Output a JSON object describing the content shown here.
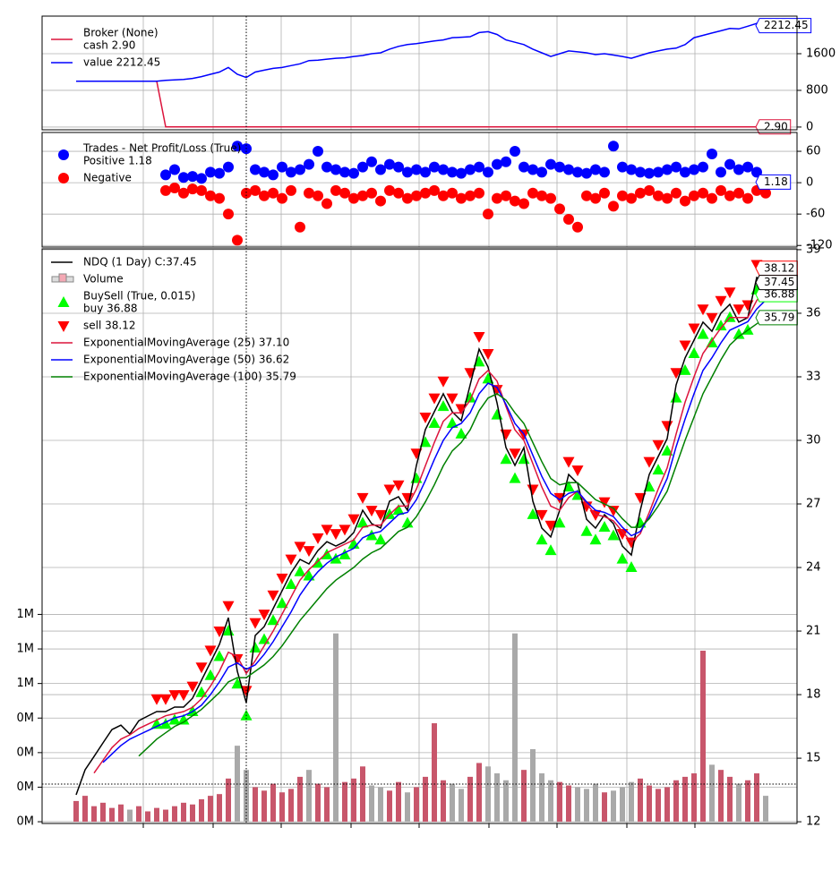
{
  "chart_data": [
    {
      "type": "line",
      "legend_title": "Broker (None)",
      "xlim": [
        -3.8,
        80.5
      ],
      "xticks": [
        7.5,
        15.3,
        22.9,
        30.7,
        38.3,
        46.1,
        53.7,
        61.5,
        69.1
      ],
      "ylim": [
        -60,
        2420
      ],
      "yticks": [
        0,
        800,
        1600
      ],
      "grid": true,
      "series": [
        {
          "name": "cash 2.90",
          "color": "#dc143c",
          "end_label": "2.90",
          "values": [
            1000,
            1000,
            1000,
            1000,
            1000,
            1000,
            1000,
            1000,
            1000,
            1000,
            2.9,
            2.9,
            2.9,
            2.9,
            2.9,
            2.9,
            2.9,
            2.9,
            2.9,
            2.9,
            2.9,
            2.9,
            2.9,
            2.9,
            2.9,
            2.9,
            2.9,
            2.9,
            2.9,
            2.9,
            2.9,
            2.9,
            2.9,
            2.9,
            2.9,
            2.9,
            2.9,
            2.9,
            2.9,
            2.9,
            2.9,
            2.9,
            2.9,
            2.9,
            2.9,
            2.9,
            2.9,
            2.9,
            2.9,
            2.9,
            2.9,
            2.9,
            2.9,
            2.9,
            2.9,
            2.9,
            2.9,
            2.9,
            2.9,
            2.9,
            2.9,
            2.9,
            2.9,
            2.9,
            2.9,
            2.9,
            2.9,
            2.9,
            2.9,
            2.9,
            2.9,
            2.9,
            2.9,
            2.9,
            2.9,
            2.9,
            2.9,
            2.9
          ]
        },
        {
          "name": "value 2212.45",
          "color": "#0000ff",
          "end_label": "2212.45",
          "values": [
            1000,
            1000,
            1000,
            1000,
            1000,
            1000,
            1000,
            1000,
            1000,
            1000,
            1020,
            1030,
            1040,
            1060,
            1100,
            1150,
            1200,
            1300,
            1150,
            1080,
            1200,
            1240,
            1280,
            1300,
            1340,
            1380,
            1450,
            1460,
            1480,
            1500,
            1510,
            1540,
            1560,
            1600,
            1620,
            1700,
            1760,
            1800,
            1820,
            1850,
            1880,
            1900,
            1950,
            1960,
            1970,
            2060,
            2080,
            2020,
            1900,
            1850,
            1800,
            1700,
            1620,
            1540,
            1600,
            1660,
            1640,
            1620,
            1580,
            1600,
            1570,
            1540,
            1500,
            1560,
            1620,
            1660,
            1700,
            1720,
            1800,
            1950,
            2000,
            2050,
            2100,
            2150,
            2140,
            2200,
            2260,
            2212.45
          ]
        }
      ]
    },
    {
      "type": "scatter",
      "legend_title": "Trades - Net Profit/Loss (True)",
      "xlim": [
        -3.8,
        80.5
      ],
      "xticks": [
        7.5,
        15.3,
        22.9,
        30.7,
        38.3,
        46.1,
        53.7,
        61.5,
        69.1
      ],
      "ylim": [
        -123,
        96
      ],
      "yticks": [
        -120,
        -60,
        0,
        60
      ],
      "grid": true,
      "series": [
        {
          "name": "Positive 1.18",
          "color": "#0000ff",
          "end_label": "1.18",
          "values": [
            null,
            null,
            null,
            null,
            null,
            null,
            null,
            null,
            null,
            null,
            15,
            25,
            10,
            12,
            8,
            20,
            18,
            30,
            70,
            65,
            25,
            20,
            15,
            30,
            20,
            25,
            35,
            60,
            30,
            25,
            20,
            18,
            30,
            40,
            25,
            35,
            30,
            20,
            25,
            20,
            30,
            25,
            20,
            18,
            25,
            30,
            20,
            35,
            40,
            60,
            30,
            25,
            20,
            35,
            30,
            25,
            20,
            18,
            25,
            20,
            70,
            30,
            25,
            20,
            18,
            20,
            25,
            30,
            20,
            25,
            30,
            55,
            20,
            35,
            25,
            30,
            20,
            1.18
          ]
        },
        {
          "name": "Negative",
          "color": "#ff0000",
          "values": [
            null,
            null,
            null,
            null,
            null,
            null,
            null,
            null,
            null,
            null,
            -15,
            -10,
            -20,
            -12,
            -15,
            -25,
            -30,
            -60,
            -110,
            -20,
            -15,
            -25,
            -20,
            -30,
            -15,
            -85,
            -20,
            -25,
            -40,
            -15,
            -20,
            -30,
            -25,
            -20,
            -35,
            -15,
            -20,
            -30,
            -25,
            -20,
            -15,
            -25,
            -20,
            -30,
            -25,
            -20,
            -60,
            -30,
            -25,
            -35,
            -40,
            -20,
            -25,
            -30,
            -50,
            -70,
            -85,
            -25,
            -30,
            -20,
            -45,
            -25,
            -30,
            -20,
            -15,
            -25,
            -30,
            -20,
            -35,
            -25,
            -20,
            -30,
            -15,
            -25,
            -20,
            -30,
            -15,
            -20
          ]
        }
      ]
    },
    {
      "type": "line",
      "xlim": [
        -3.8,
        80.5
      ],
      "xticks": [
        7.5,
        15.3,
        22.9,
        30.7,
        38.3,
        46.1,
        53.7,
        61.5,
        69.1
      ],
      "ylim": [
        11.92,
        39.04
      ],
      "yticks": [
        12,
        15,
        18,
        21,
        24,
        27,
        30,
        33,
        36,
        39
      ],
      "grid": true,
      "y2lim": [
        -10000,
        3316000
      ],
      "y2ticks": [
        {
          "value": 0,
          "label": "0M"
        },
        {
          "value": 200000,
          "label": "0M"
        },
        {
          "value": 400000,
          "label": "0M"
        },
        {
          "value": 600000,
          "label": "0M"
        },
        {
          "value": 800000,
          "label": "1M"
        },
        {
          "value": 1000000,
          "label": "1M"
        },
        {
          "value": 1200000,
          "label": "1M"
        }
      ],
      "series": [
        {
          "name": "NDQ (1 Day) C:37.45",
          "color": "#000000",
          "end_label": "37.45",
          "values": [
            13.27,
            14.45,
            15.08,
            15.72,
            16.35,
            16.56,
            16.14,
            16.77,
            16.99,
            17.2,
            17.2,
            17.41,
            17.41,
            17.83,
            18.68,
            19.52,
            20.37,
            21.63,
            19.1,
            17.62,
            20.79,
            21.21,
            22.06,
            22.9,
            23.75,
            24.38,
            24.17,
            24.8,
            25.22,
            25.01,
            25.22,
            25.65,
            26.7,
            26.07,
            25.86,
            27.13,
            27.34,
            26.7,
            28.82,
            30.51,
            31.35,
            32.2,
            31.35,
            30.93,
            32.62,
            34.31,
            33.46,
            31.77,
            29.66,
            28.82,
            29.66,
            27.13,
            25.86,
            25.44,
            26.7,
            28.39,
            27.97,
            26.28,
            25.86,
            26.49,
            26.07,
            25.01,
            24.59,
            26.7,
            28.39,
            29.24,
            30.08,
            32.62,
            33.89,
            34.73,
            35.58,
            35.15,
            36.0,
            36.42,
            35.58,
            35.79,
            37.69,
            37.45
          ]
        },
        {
          "name": "Volume",
          "style": "bar",
          "axis": "y2",
          "color": "#c8566b",
          "down_color": "#a9a9a9",
          "values": [
            120000,
            150000,
            90000,
            110000,
            80000,
            100000,
            70000,
            90000,
            60000,
            80000,
            70000,
            90000,
            110000,
            100000,
            130000,
            150000,
            160000,
            250000,
            440000,
            300000,
            200000,
            180000,
            220000,
            170000,
            190000,
            260000,
            300000,
            220000,
            200000,
            1090000,
            230000,
            250000,
            320000,
            210000,
            200000,
            180000,
            230000,
            170000,
            200000,
            260000,
            570000,
            240000,
            220000,
            190000,
            260000,
            340000,
            320000,
            280000,
            240000,
            1090000,
            300000,
            420000,
            280000,
            240000,
            230000,
            210000,
            200000,
            190000,
            220000,
            170000,
            180000,
            200000,
            230000,
            250000,
            210000,
            190000,
            200000,
            240000,
            260000,
            280000,
            990000,
            330000,
            300000,
            260000,
            220000,
            240000,
            280000,
            150000
          ]
        },
        {
          "name": "buy 36.88",
          "group_title": "BuySell (True, 0.015)",
          "style": "triangle-up",
          "color": "#00ff00",
          "end_label": "36.88",
          "values": [
            null,
            null,
            null,
            null,
            null,
            null,
            null,
            null,
            null,
            16.6,
            16.6,
            16.8,
            16.8,
            17.2,
            18.1,
            18.9,
            19.8,
            21.0,
            18.5,
            17.0,
            20.2,
            20.6,
            21.5,
            22.3,
            23.2,
            23.8,
            23.6,
            24.2,
            24.6,
            24.4,
            24.6,
            25.1,
            26.1,
            25.5,
            25.3,
            26.5,
            26.7,
            26.1,
            28.2,
            29.9,
            30.8,
            31.6,
            30.8,
            30.3,
            32.0,
            33.7,
            32.9,
            31.2,
            29.1,
            28.2,
            29.1,
            26.5,
            25.3,
            24.8,
            26.1,
            27.8,
            27.4,
            25.7,
            25.3,
            25.9,
            25.5,
            24.4,
            24.0,
            26.1,
            27.8,
            28.6,
            29.5,
            32.0,
            33.3,
            34.1,
            35.0,
            34.6,
            35.4,
            35.8,
            35.0,
            35.2,
            37.1,
            36.88
          ]
        },
        {
          "name": "sell 38.12",
          "style": "triangle-down",
          "color": "#ff0000",
          "end_label": "38.12",
          "values": [
            null,
            null,
            null,
            null,
            null,
            null,
            null,
            null,
            null,
            17.8,
            17.8,
            18.0,
            18.0,
            18.4,
            19.3,
            20.1,
            21.0,
            22.2,
            19.7,
            18.2,
            21.4,
            21.8,
            22.7,
            23.5,
            24.4,
            25.0,
            24.8,
            25.4,
            25.8,
            25.6,
            25.8,
            26.3,
            27.3,
            26.7,
            26.5,
            27.7,
            27.9,
            27.3,
            29.4,
            31.1,
            32.0,
            32.8,
            32.0,
            31.5,
            33.2,
            34.9,
            34.1,
            32.4,
            30.3,
            29.4,
            30.3,
            27.7,
            26.5,
            26.0,
            27.3,
            29.0,
            28.6,
            26.9,
            26.5,
            27.1,
            26.7,
            25.6,
            25.2,
            27.3,
            29.0,
            29.8,
            30.7,
            33.2,
            34.5,
            35.3,
            36.2,
            35.8,
            36.6,
            37.0,
            36.2,
            36.4,
            38.3,
            38.12
          ]
        },
        {
          "name": "ExponentialMovingAverage (25) 37.10",
          "color": "#dc143c",
          "values": [
            null,
            null,
            14.3,
            14.9,
            15.5,
            15.9,
            16.1,
            16.4,
            16.6,
            16.8,
            17.0,
            17.1,
            17.2,
            17.4,
            17.8,
            18.4,
            19.1,
            20.0,
            19.8,
            19.0,
            19.6,
            20.3,
            21.0,
            21.8,
            22.6,
            23.4,
            23.9,
            24.3,
            24.7,
            24.9,
            25.1,
            25.3,
            25.9,
            26.0,
            26.0,
            26.5,
            26.9,
            26.9,
            27.7,
            28.8,
            29.9,
            30.9,
            31.3,
            31.3,
            31.9,
            32.9,
            33.3,
            32.8,
            31.6,
            30.5,
            30.0,
            28.9,
            27.8,
            26.9,
            26.7,
            27.3,
            27.6,
            27.0,
            26.5,
            26.4,
            26.2,
            25.7,
            25.2,
            25.6,
            26.6,
            27.7,
            28.7,
            30.3,
            31.8,
            33.0,
            34.1,
            34.7,
            35.3,
            35.8,
            35.8,
            35.8,
            36.6,
            37.1
          ]
        },
        {
          "name": "ExponentialMovingAverage (50) 36.62",
          "color": "#0000ff",
          "values": [
            null,
            null,
            null,
            14.8,
            15.2,
            15.6,
            15.9,
            16.1,
            16.3,
            16.5,
            16.7,
            16.9,
            17.0,
            17.2,
            17.5,
            18.0,
            18.6,
            19.3,
            19.5,
            19.2,
            19.4,
            19.9,
            20.5,
            21.2,
            21.9,
            22.7,
            23.3,
            23.8,
            24.2,
            24.5,
            24.7,
            24.9,
            25.4,
            25.6,
            25.7,
            26.1,
            26.5,
            26.6,
            27.2,
            28.1,
            29.1,
            30.0,
            30.6,
            30.8,
            31.3,
            32.2,
            32.7,
            32.5,
            31.7,
            30.8,
            30.3,
            29.3,
            28.3,
            27.5,
            27.2,
            27.5,
            27.6,
            27.1,
            26.7,
            26.6,
            26.4,
            25.9,
            25.5,
            25.7,
            26.4,
            27.3,
            28.2,
            29.7,
            31.0,
            32.2,
            33.3,
            33.9,
            34.6,
            35.2,
            35.4,
            35.6,
            36.2,
            36.62
          ]
        },
        {
          "name": "ExponentialMovingAverage (100) 35.79",
          "color": "#008000",
          "end_label": "35.79",
          "values": [
            null,
            null,
            null,
            null,
            null,
            null,
            null,
            15.1,
            15.5,
            15.9,
            16.2,
            16.5,
            16.7,
            17.0,
            17.3,
            17.7,
            18.1,
            18.6,
            18.8,
            18.8,
            19.1,
            19.4,
            19.8,
            20.3,
            20.9,
            21.5,
            22.0,
            22.5,
            23.0,
            23.4,
            23.7,
            24.0,
            24.4,
            24.7,
            24.9,
            25.3,
            25.7,
            25.9,
            26.4,
            27.1,
            27.9,
            28.8,
            29.5,
            29.9,
            30.5,
            31.4,
            32.0,
            32.2,
            31.9,
            31.3,
            30.8,
            29.9,
            29.0,
            28.2,
            27.9,
            28.0,
            28.0,
            27.6,
            27.2,
            27.0,
            26.8,
            26.3,
            25.9,
            25.9,
            26.3,
            26.9,
            27.6,
            28.8,
            30.0,
            31.1,
            32.2,
            33.0,
            33.8,
            34.5,
            34.9,
            35.2,
            35.5,
            35.79
          ]
        }
      ]
    }
  ]
}
